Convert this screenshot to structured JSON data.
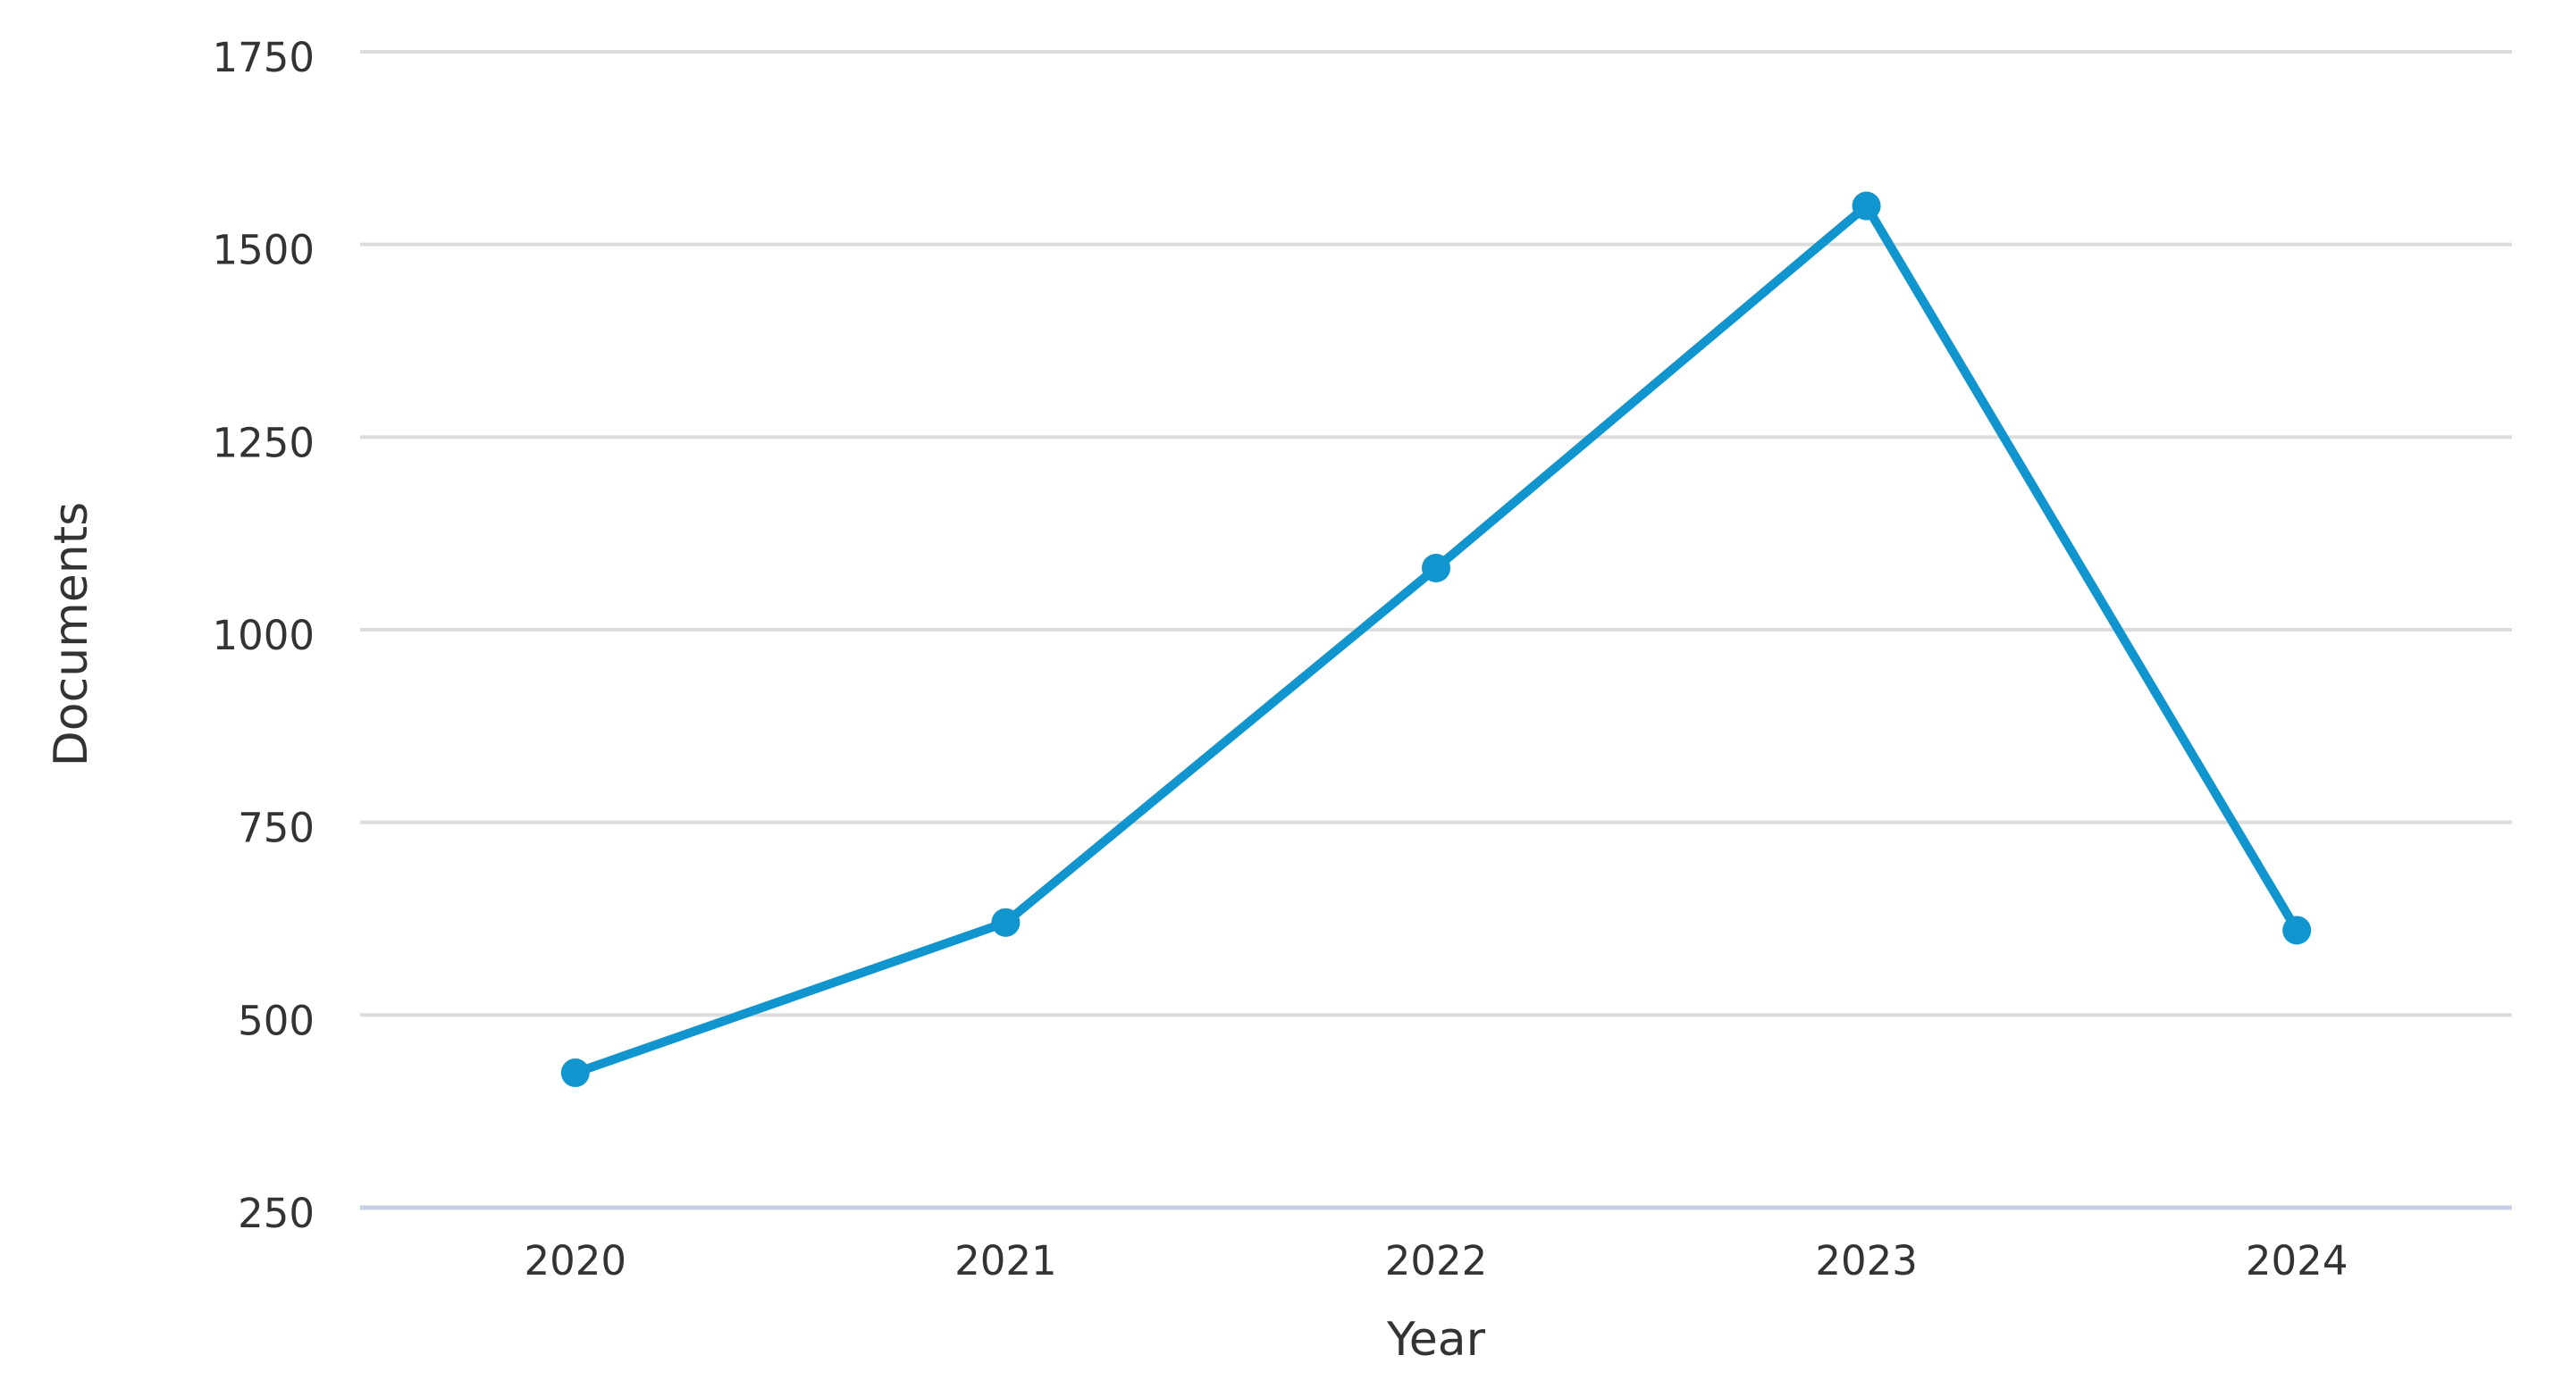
{
  "chart_data": {
    "type": "line",
    "title": "",
    "xlabel": "Year",
    "ylabel": "Documents",
    "categories": [
      "2020",
      "2021",
      "2022",
      "2023",
      "2024"
    ],
    "series": [
      {
        "name": "Documents",
        "values": [
          425,
          620,
          1080,
          1550,
          610
        ]
      }
    ],
    "ylim": [
      250,
      1750
    ],
    "yticks": [
      250,
      500,
      750,
      1000,
      1250,
      1500,
      1750
    ],
    "grid": "horizontal gridlines only, no vertical gridlines",
    "legend": "none",
    "marker": "filled-circle",
    "colors": {
      "line": "#1095ce",
      "marker": "#1095ce",
      "gridline": "#dcdcdc",
      "baseline": "#c5d0e4",
      "tick_text": "#333333",
      "axis_title_text": "#333333",
      "background": "#ffffff"
    }
  }
}
